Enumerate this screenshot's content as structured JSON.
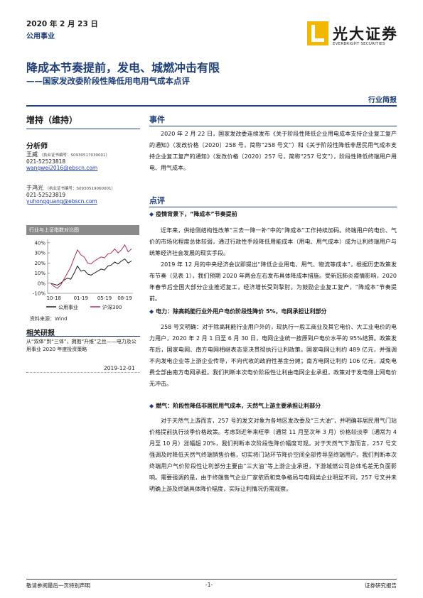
{
  "header": {
    "date": "2020 年 2 月 23 日",
    "sector": "公用事业",
    "logo_cn": "光大证券",
    "logo_en": "EVERBRIGHT SECURITIES",
    "title": "降成本节奏提前，发电、城燃冲击有限",
    "subtitle": "——国家发改委阶段性降低用电用气成本点评",
    "doc_type": "行业简报"
  },
  "sidebar": {
    "rating": "增持（维持）",
    "analyst_heading": "分析师",
    "analysts": [
      {
        "name": "王威",
        "cert": "（执业证书编号：S0930517030001）",
        "phone": "021-52523818",
        "email": "wangwei2016@ebscn.com"
      },
      {
        "name": "于鸿光",
        "cert": "（执业证书编号：S0930519060001）",
        "phone": "021-52523819",
        "email": "yuhongguang@ebscn.com"
      }
    ],
    "chart_title": "行业与上证指数对比图",
    "chart_source": "资料来源：Wind",
    "related_heading": "相关研报",
    "related_text": "从“双体”到“三体”，拥抱“升维”之丝——电力及公用事业 2020 年度投资策略",
    "related_date": "2019-12-01"
  },
  "chart_data": {
    "type": "line",
    "title": "行业与上证指数对比图",
    "x_ticks": [
      "10-18",
      "01-19",
      "05-19",
      "08-19"
    ],
    "y_ticks": [
      "-10%",
      "0%",
      "10%",
      "20%",
      "30%",
      "40%"
    ],
    "ylim": [
      -10,
      42
    ],
    "series": [
      {
        "name": "公用事业",
        "color": "#1a1a1a",
        "values": [
          0,
          -1,
          -2,
          0,
          3,
          5,
          4,
          10,
          17,
          12,
          13,
          9,
          8,
          10,
          12,
          14,
          13,
          17,
          18,
          21,
          19,
          22,
          24,
          20,
          22
        ]
      },
      {
        "name": "沪深300",
        "color": "#b0304a",
        "values": [
          0,
          -3,
          -5,
          -2,
          4,
          10,
          16,
          25,
          33,
          28,
          26,
          20,
          19,
          22,
          24,
          26,
          25,
          29,
          30,
          34,
          30,
          33,
          38,
          31,
          34
        ]
      }
    ]
  },
  "event": {
    "heading": "事件",
    "paragraph": "2020 年 2 月 22 日，国家发改委连续发布《关于阶段性降低企业用电成本支持企业复工复产的通知》（发改价格〔2020〕258 号，简称“258 号文”）和《关于阶段性降低非居民用气成本支持企业复工复产的通知》（发改价格〔2020〕257 号，简称“257 号文”），阶段性降低终端用户用电、用气成本。"
  },
  "comment": {
    "heading": "点评",
    "bullet1": "疫情背景下，“降成本”节奏提前",
    "p1": "近年来，供给侧结构性改革“三去一降一补”中的“降成本”工作持续加码。终端用户的电价、气价的市场化程度总体较弱，通过行政性手段降低用能成本（用电、用气成本）成为让利终端用户与统筹经济社会发展的现实手段。",
    "p2": "2019 年 12 月的中央经济会议即提出“降低企业用电、用气、物流等成本”，根据历史政策发布节奏（见表 1），我们预期 2020 年两会左右发布具体降成本措施。受新冠肺炎疫情影响，2020 年春节后全国大部分企业推迟复工，经济增长受到掣肘。为鼓励企业复工复产，“降成本”节奏提前。",
    "bullet2": "电力：除高耗能行业外用户电价阶段性降价 5%，电网承担让利部分",
    "p3": "258 号文明确：对于除高耗能行业用户外的，现执行一般工商业及其它电价、大工业电价的电力用户，2020 年 2 月 1 日至 6 月 30 日，电网企业统一按原到户电价水平的 95%结算。政策发布后，国家电网、南方电网相继表态坚决贯彻执行让利政策。国家电网让利约 489 亿元，并强调不向发电企业等上游企业传导，不向代收的政府性基金分摊；南方电网让利约 106 亿元，减免电费全部由南方电网承担。我们判断本次电价阶段性让利由电网企业承担，政策对于发电侧上网电价无冲击。",
    "bullet3": "燃气：阶段性降低非居民用气成本，天然气上游主要承担让利部分",
    "p4": "对于天然气上游而言，257 号的发文对象为各地区发改委及“三大油”，并明确非居民用气门站价格提前执行淡季价格政策。考虑到近年来旺季（通常 11 月至次年 3 月）价格较淡季（通常为 4 月至 10 月）涨幅超 20%，我们判断本次阶段性降价幅度可观。对于天然气下游而言，257 号文强调及时降低天然气终端销售价格，切实将门站环节降价空间全部传导至终端用户。我们判断本次终端用户气价阶段性让利部分主要由“三大油”等上游企业承担，下游城燃公司总体毛差无负面影响。需要强调的是，由于终端售气企业厂家依质和竞争格局与电网类企业明显不同，257 号文并未明确上游及终端具体降价幅度，实际让利情况仍需观察。"
  },
  "footer": {
    "left": "敬请参阅最后一页特别声明",
    "center": "-1-",
    "right": "证券研究报告"
  }
}
